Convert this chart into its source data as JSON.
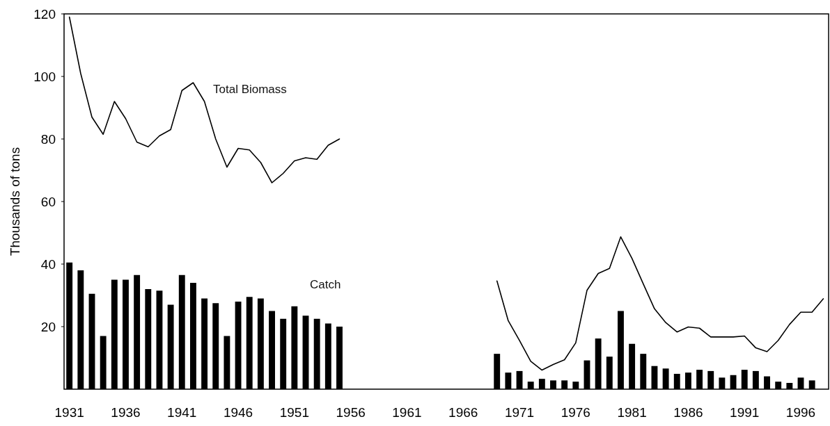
{
  "chart_data": {
    "type": "bar",
    "ylabel": "Thousands of tons",
    "categories": [
      "1931",
      null,
      null,
      null,
      null,
      "1936",
      null,
      null,
      null,
      null,
      "1941",
      null,
      null,
      null,
      null,
      "1946",
      null,
      null,
      null,
      null,
      "1951",
      null,
      null,
      null,
      null,
      "1956",
      null,
      null,
      null,
      null,
      "1961",
      null,
      null,
      null,
      null,
      "1966",
      null,
      null,
      null,
      null,
      "1971",
      null,
      null,
      null,
      null,
      "1976",
      null,
      null,
      null,
      null,
      "1981",
      null,
      null,
      null,
      null,
      "1986",
      null,
      null,
      null,
      null,
      "1991",
      null,
      null,
      null,
      null,
      "1996",
      null,
      null
    ],
    "series": [
      {
        "name": "Catch",
        "color": "#000000",
        "values": [
          40.5,
          38,
          30.5,
          17,
          35,
          35,
          36.5,
          32,
          31.5,
          27,
          36.5,
          34,
          29,
          27.5,
          17,
          28,
          29.5,
          29,
          25,
          22.5,
          26.5,
          23.5,
          22.5,
          21,
          20,
          null,
          null,
          null,
          null,
          null,
          null,
          null,
          null,
          null,
          null,
          null,
          null,
          null,
          11.3,
          5.3,
          5.8,
          2.4,
          3.3,
          2.8,
          2.8,
          2.4,
          9.2,
          16.2,
          10.4,
          25,
          14.5,
          11.3,
          7.4,
          6.6,
          4.9,
          5.3,
          6.2,
          5.8,
          3.7,
          4.5,
          6.2,
          5.8,
          4.1,
          2.4,
          2,
          3.7,
          2.8,
          null
        ]
      },
      {
        "name": "Total Biomass",
        "type": "line",
        "color": "#000000",
        "values": [
          119,
          101,
          87,
          81.5,
          92,
          86.5,
          79,
          77.5,
          81,
          83,
          95.5,
          98,
          92,
          80,
          71,
          77,
          76.5,
          72.5,
          66,
          69,
          73,
          74,
          73.5,
          78,
          80,
          null,
          null,
          null,
          null,
          null,
          null,
          null,
          null,
          null,
          null,
          null,
          null,
          null,
          34.6,
          21.9,
          15.6,
          8.9,
          6.1,
          7.9,
          9.4,
          14.8,
          31.6,
          37,
          38.6,
          48.7,
          41.8,
          33.7,
          25.7,
          21.3,
          18.3,
          19.9,
          19.5,
          16.7,
          16.7,
          16.7,
          17,
          13.2,
          12,
          15.6,
          20.7,
          24.6,
          24.6,
          28.9
        ]
      }
    ],
    "ylim": [
      0,
      120
    ],
    "yticks": [
      20,
      40,
      60,
      80,
      100,
      120
    ]
  }
}
